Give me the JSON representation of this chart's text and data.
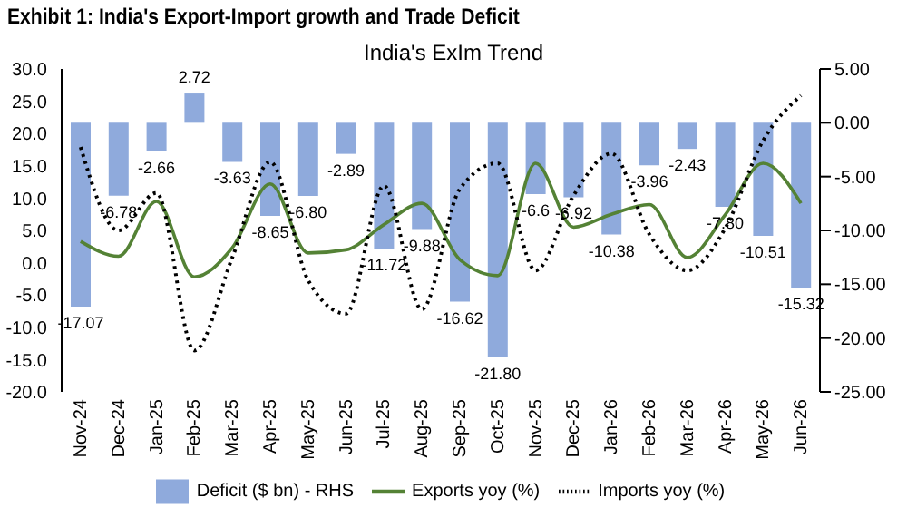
{
  "chart_data": {
    "type": "bar",
    "title": "Exhibit 1: India's Export-Import growth and Trade Deficit",
    "subtitle": "India's ExIm Trend",
    "categories": [
      "Nov-24",
      "Dec-24",
      "Jan-25",
      "Feb-25",
      "Mar-25",
      "Apr-25",
      "May-25",
      "Jun-25",
      "Jul-25",
      "Aug-25",
      "Sep-25",
      "Oct-25",
      "Nov-25",
      "Dec-25",
      "Jan-26",
      "Feb-26",
      "Mar-26",
      "Apr-26",
      "May-26",
      "Jun-26"
    ],
    "series": [
      {
        "name": "Deficit ($ bn) - RHS",
        "axis": "y2",
        "color": "#8faadc",
        "values": [
          -17.07,
          -6.78,
          -2.66,
          2.72,
          -3.63,
          -8.65,
          -6.8,
          -2.89,
          -11.72,
          -9.88,
          -16.62,
          -21.8,
          -6.63,
          -6.92,
          -10.38,
          -3.96,
          -2.43,
          -7.8,
          -10.51,
          -15.32
        ],
        "value_labels": [
          "-17.07",
          "-6.78",
          "-2.66",
          "2.72",
          "-3.63",
          "-8.65",
          "-6.80",
          "-2.89",
          "-11.72",
          "-9.88",
          "-16.62",
          "-21.80",
          "-6.6",
          "-6.92",
          "-10.38",
          "-3.96",
          "-2.43",
          "-7.80",
          "-10.51",
          "-15.32"
        ]
      },
      {
        "name": "Exports yoy (%)",
        "type": "line",
        "color": "#548235",
        "line_style": "solid",
        "values": [
          3.3,
          1.0,
          9.5,
          -2.2,
          2.3,
          12.2,
          1.5,
          2.0,
          5.9,
          9.2,
          0.5,
          -2.0,
          15.4,
          5.5,
          7.5,
          9.0,
          0.8,
          7.4,
          15.4,
          9.2
        ]
      },
      {
        "name": "Imports yoy (%)",
        "type": "line",
        "color": "#000000",
        "line_style": "dotted",
        "values": [
          17.9,
          5.0,
          10.8,
          -13.6,
          0.8,
          15.6,
          -2.7,
          -7.9,
          11.9,
          -7.2,
          11.4,
          15.4,
          -1.2,
          10.4,
          16.9,
          4.4,
          -1.2,
          5.3,
          18.9,
          25.9
        ]
      }
    ],
    "ylim": [
      -20,
      30
    ],
    "yticks": [
      {
        "value": -20,
        "label": "-20.0"
      },
      {
        "value": -15,
        "label": "-15.0"
      },
      {
        "value": -10,
        "label": "-10.0"
      },
      {
        "value": -5,
        "label": "-5.0"
      },
      {
        "value": 0,
        "label": "0.0"
      },
      {
        "value": 5,
        "label": "5.0"
      },
      {
        "value": 10,
        "label": "10.0"
      },
      {
        "value": 15,
        "label": "15.0"
      },
      {
        "value": 20,
        "label": "20.0"
      },
      {
        "value": 25,
        "label": "25.0"
      },
      {
        "value": 30,
        "label": "30.0"
      }
    ],
    "y2lim": [
      -25,
      5
    ],
    "y2ticks": [
      {
        "value": -25,
        "label": "-25.00"
      },
      {
        "value": -20,
        "label": "-20.00"
      },
      {
        "value": -15,
        "label": "-15.00"
      },
      {
        "value": -10,
        "label": "-10.00"
      },
      {
        "value": -5,
        "label": "-5.00"
      },
      {
        "value": 0,
        "label": "0.00"
      },
      {
        "value": 5,
        "label": "5.00"
      }
    ],
    "grid": false,
    "legend": "bottom",
    "marker": "none"
  }
}
